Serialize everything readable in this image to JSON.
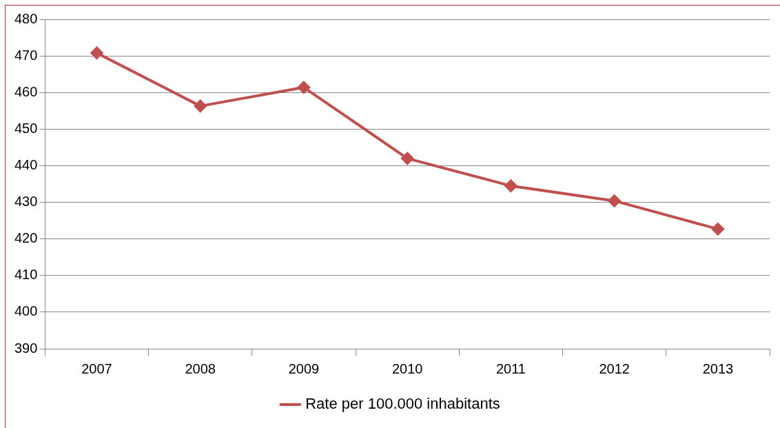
{
  "chart_data": {
    "type": "line",
    "categories": [
      "2007",
      "2008",
      "2009",
      "2010",
      "2011",
      "2012",
      "2013"
    ],
    "series": [
      {
        "name": "Rate per 100.000 inhabitants",
        "color": "#c0504d",
        "values": [
          470.8,
          456.3,
          461.4,
          442.0,
          434.5,
          430.4,
          422.7
        ]
      }
    ],
    "ylim": [
      390,
      480
    ],
    "yticks": [
      390,
      400,
      410,
      420,
      430,
      440,
      450,
      460,
      470,
      480
    ],
    "grid": "y",
    "legend": "bottom",
    "marker": "diamond",
    "line_style": "solid"
  }
}
